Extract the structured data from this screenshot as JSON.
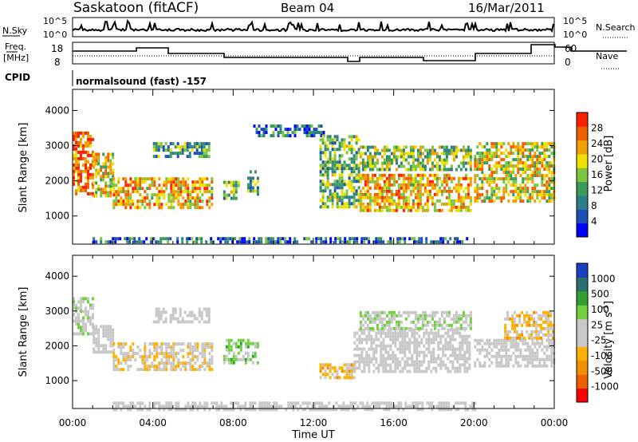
{
  "header": {
    "station": "Saskatoon (fitACF)",
    "beam": "Beam 04",
    "date": "16/Mar/2011"
  },
  "status_panels": {
    "nsky_label": "N.Sky",
    "nsearch_label": "N.Search",
    "count_ticks": [
      "10^5",
      "10^0"
    ],
    "freq_label_line1": "Freq.",
    "freq_label_line2": "[MHz]",
    "freq_ticks": [
      "18",
      "8"
    ],
    "nave_label": "Nave",
    "nave_ticks": [
      "60",
      "0"
    ],
    "cpid_label": "CPID",
    "cpid_text": "normalsound (fast) -157"
  },
  "colors": {
    "power": [
      "#0000ff",
      "#1c4fb4",
      "#2e7e8a",
      "#3a9a5a",
      "#7cc640",
      "#f0e000",
      "#f0a000",
      "#f06000",
      "#ff2000"
    ],
    "velocity": [
      "#ff0000",
      "#f06000",
      "#f09000",
      "#ffb000",
      "#c8c8c8",
      "#c8c8c8",
      "#70d040",
      "#30a030",
      "#2a7070",
      "#1a40c0"
    ]
  },
  "chart_data": [
    {
      "type": "heatmap",
      "name": "power",
      "ylabel": "Slant Range [km]",
      "xlabel": "",
      "yticks": [
        "1000",
        "2000",
        "3000",
        "4000"
      ],
      "ylim": [
        200,
        4600
      ],
      "xticks": [],
      "xlim": [
        0,
        24
      ],
      "colorbar": {
        "label": "Power [dB]",
        "ticks": [
          "4",
          "8",
          "12",
          "16",
          "20",
          "24",
          "28"
        ],
        "range": [
          0,
          32
        ]
      },
      "echo_regions": [
        {
          "t0": 0.0,
          "t1": 1.0,
          "r0": 1600,
          "r1": 3400,
          "value": 26
        },
        {
          "t0": 1.0,
          "t1": 2.0,
          "r0": 1600,
          "r1": 2800,
          "value": 20
        },
        {
          "t0": 2.0,
          "t1": 7.0,
          "r0": 1200,
          "r1": 2100,
          "value": 22
        },
        {
          "t0": 4.0,
          "t1": 6.8,
          "r0": 2700,
          "r1": 3100,
          "value": 12
        },
        {
          "t0": 7.5,
          "t1": 8.3,
          "r0": 1500,
          "r1": 2000,
          "value": 14
        },
        {
          "t0": 8.7,
          "t1": 9.2,
          "r0": 1600,
          "r1": 2300,
          "value": 12
        },
        {
          "t0": 9.0,
          "t1": 12.5,
          "r0": 3300,
          "r1": 3600,
          "value": 8
        },
        {
          "t0": 12.3,
          "t1": 14.3,
          "r0": 1300,
          "r1": 3300,
          "value": 14
        },
        {
          "t0": 14.3,
          "t1": 19.8,
          "r0": 1200,
          "r1": 2200,
          "value": 22
        },
        {
          "t0": 14.3,
          "t1": 19.8,
          "r0": 2300,
          "r1": 3000,
          "value": 16
        },
        {
          "t0": 20.0,
          "t1": 24.0,
          "r0": 1400,
          "r1": 3100,
          "value": 20
        },
        {
          "t0": 1.0,
          "t1": 19.8,
          "r0": 250,
          "r1": 400,
          "value": 8
        }
      ]
    },
    {
      "type": "heatmap",
      "name": "velocity",
      "ylabel": "Slant Range [km]",
      "xlabel": "Time UT",
      "yticks": [
        "1000",
        "2000",
        "3000",
        "4000"
      ],
      "ylim": [
        200,
        4600
      ],
      "xticks": [
        "00:00",
        "04:00",
        "08:00",
        "12:00",
        "16:00",
        "20:00",
        "00:00"
      ],
      "xlim": [
        0,
        24
      ],
      "colorbar": {
        "label": "Velocity [m s^-1]",
        "ticks": [
          "-1000",
          "-500",
          "-100",
          "-25",
          "25",
          "100",
          "500",
          "1000"
        ],
        "range": [
          -1250,
          1250
        ]
      },
      "echo_regions": [
        {
          "t0": 0.0,
          "t1": 1.0,
          "r0": 2300,
          "r1": 3400,
          "value": 150
        },
        {
          "t0": 1.0,
          "t1": 2.0,
          "r0": 1800,
          "r1": 2600,
          "value": 0
        },
        {
          "t0": 2.0,
          "t1": 7.0,
          "r0": 1300,
          "r1": 2100,
          "value": -150
        },
        {
          "t0": 4.0,
          "t1": 6.8,
          "r0": 2700,
          "r1": 3100,
          "value": 0
        },
        {
          "t0": 7.5,
          "t1": 9.2,
          "r0": 1500,
          "r1": 2200,
          "value": 300
        },
        {
          "t0": 12.3,
          "t1": 14.0,
          "r0": 1100,
          "r1": 1500,
          "value": -300
        },
        {
          "t0": 14.0,
          "t1": 19.8,
          "r0": 1300,
          "r1": 2500,
          "value": 0
        },
        {
          "t0": 14.3,
          "t1": 19.8,
          "r0": 2500,
          "r1": 3000,
          "value": 150
        },
        {
          "t0": 20.0,
          "t1": 24.0,
          "r0": 1400,
          "r1": 2200,
          "value": 0
        },
        {
          "t0": 21.5,
          "t1": 24.0,
          "r0": 2200,
          "r1": 3000,
          "value": -300
        },
        {
          "t0": 2.0,
          "t1": 20.0,
          "r0": 200,
          "r1": 400,
          "value": -50
        }
      ]
    }
  ]
}
